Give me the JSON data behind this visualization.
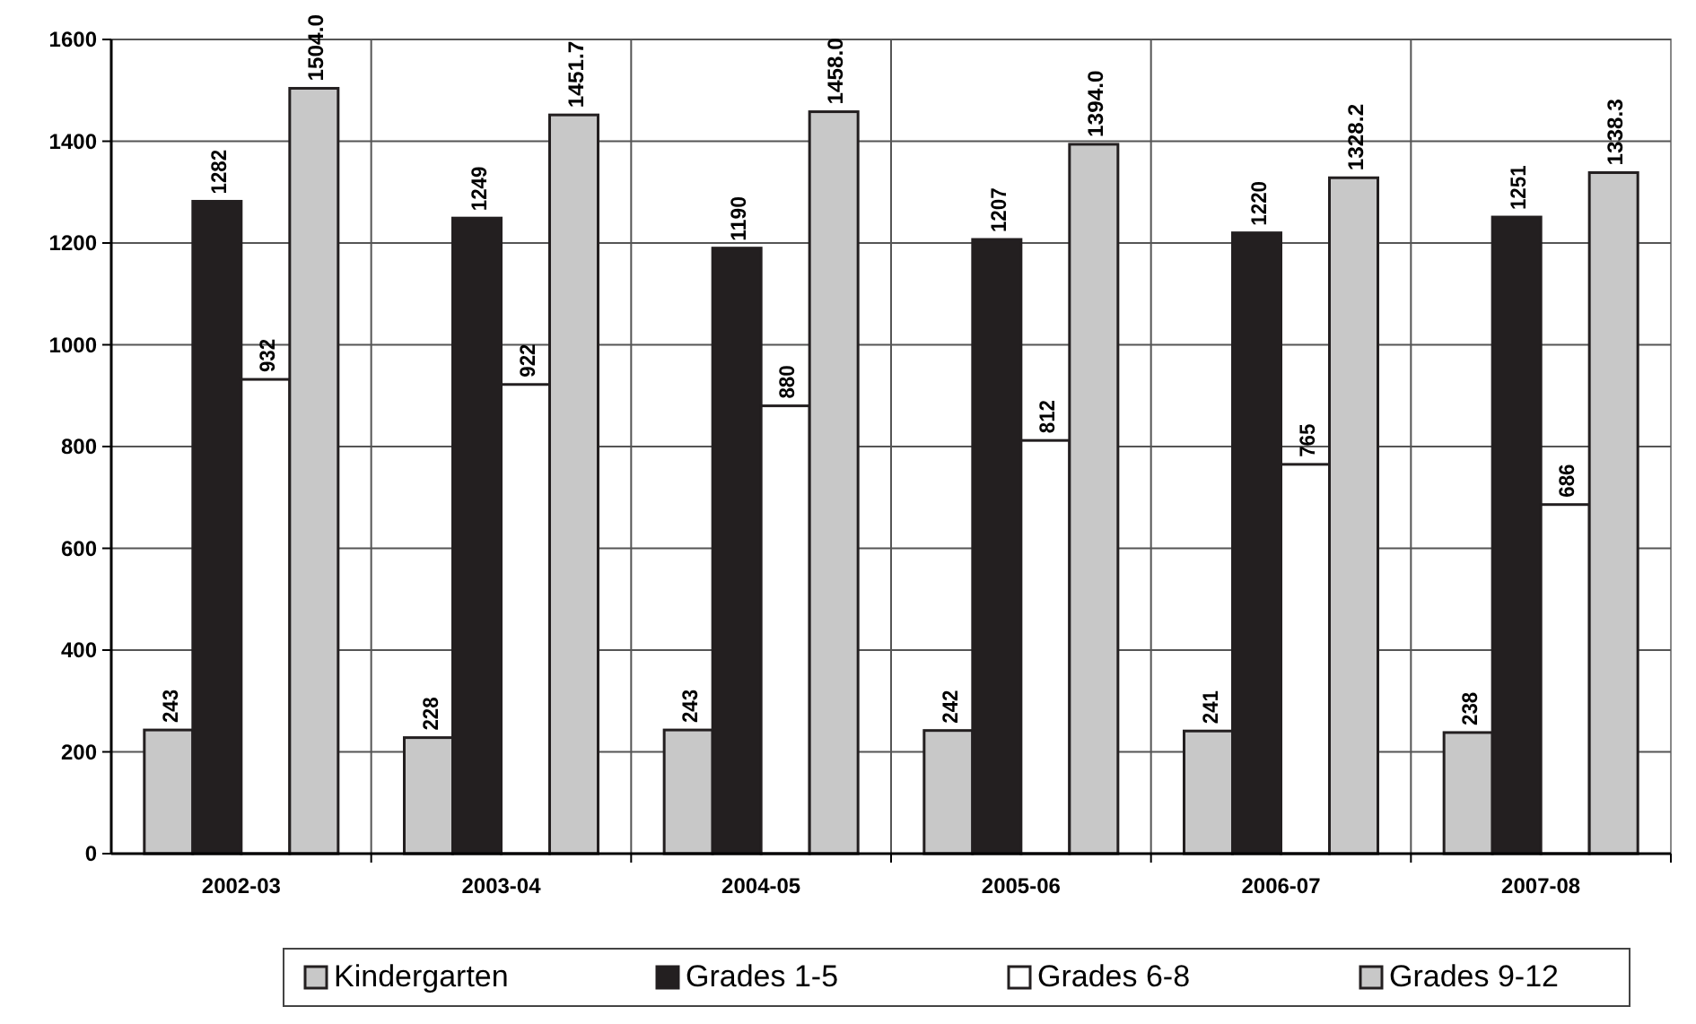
{
  "chart_data": {
    "type": "bar",
    "categories": [
      "2002-03",
      "2003-04",
      "2004-05",
      "2005-06",
      "2006-07",
      "2007-08"
    ],
    "series": [
      {
        "name": "Kindergarten",
        "color": "#c8c8c8",
        "values": [
          243,
          228,
          243,
          242,
          241,
          238
        ],
        "value_labels": [
          "243",
          "228",
          "243",
          "242",
          "241",
          "238"
        ]
      },
      {
        "name": "Grades 1-5",
        "color": "#231f20",
        "values": [
          1282,
          1249,
          1190,
          1207,
          1220,
          1251
        ],
        "value_labels": [
          "1282",
          "1249",
          "1190",
          "1207",
          "1220",
          "1251"
        ]
      },
      {
        "name": "Grades 6-8",
        "color": "#ffffff",
        "values": [
          932,
          922,
          880,
          812,
          765,
          686
        ],
        "value_labels": [
          "932",
          "922",
          "880",
          "812",
          "765",
          "686"
        ]
      },
      {
        "name": "Grades 9-12",
        "color": "#c8c8c8",
        "values": [
          1504.0,
          1451.7,
          1458.0,
          1394.0,
          1328.2,
          1338.3
        ],
        "value_labels": [
          "1504.0",
          "1451.7",
          "1458.0",
          "1394.0",
          "1328.2",
          "1338.3"
        ]
      }
    ],
    "ylim": [
      0,
      1600
    ],
    "yticks": [
      0,
      200,
      400,
      600,
      800,
      1000,
      1200,
      1400,
      1600
    ],
    "grid": true,
    "legend": "bottom"
  }
}
